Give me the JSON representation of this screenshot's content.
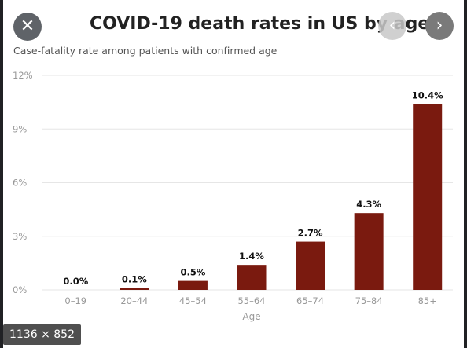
{
  "viewer": {
    "image_dimensions": "1136 × 852",
    "close_icon": "close-icon",
    "prev_icon": "chevron-left-icon",
    "next_icon": "chevron-right-icon"
  },
  "colors": {
    "bar": "#7a1a0f",
    "grid": "#e6e6e6",
    "tick": "#999999",
    "label": "#111111"
  },
  "chart_data": {
    "type": "bar",
    "title": "COVID-19 death rates in US by age",
    "subtitle": "Case-fatality rate among patients with confirmed age",
    "xlabel": "Age",
    "ylabel": "",
    "categories": [
      "0–19",
      "20–44",
      "45–54",
      "55–64",
      "65–74",
      "75–84",
      "85+"
    ],
    "values": [
      0.0,
      0.1,
      0.5,
      1.4,
      2.7,
      4.3,
      10.4
    ],
    "value_labels": [
      "0.0%",
      "0.1%",
      "0.5%",
      "1.4%",
      "2.7%",
      "4.3%",
      "10.4%"
    ],
    "yticks": [
      0,
      3,
      6,
      9,
      12
    ],
    "ytick_labels": [
      "0%",
      "3%",
      "6%",
      "9%",
      "12%"
    ],
    "ylim": [
      0,
      12
    ],
    "grid": true
  }
}
